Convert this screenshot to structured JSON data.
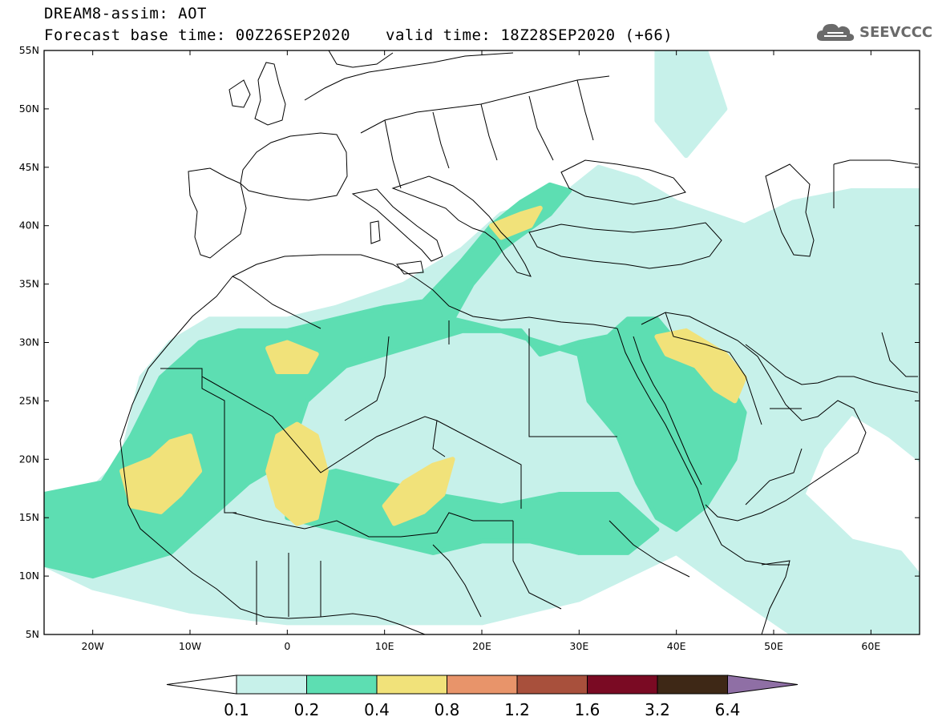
{
  "header": {
    "line1": "DREAM8-assim: AOT",
    "base_time": "Forecast base time: 00Z26SEP2020",
    "valid_time": "valid time: 18Z28SEP2020 (+66)"
  },
  "logo": {
    "text": "SEEVCCC",
    "icon": "cloud-icon"
  },
  "map": {
    "lon_range": [
      -25,
      65
    ],
    "lat_range": [
      5,
      55
    ],
    "lat_ticks": [
      {
        "lat": 55,
        "label": "55N"
      },
      {
        "lat": 50,
        "label": "50N"
      },
      {
        "lat": 45,
        "label": "45N"
      },
      {
        "lat": 40,
        "label": "40N"
      },
      {
        "lat": 35,
        "label": "35N"
      },
      {
        "lat": 30,
        "label": "30N"
      },
      {
        "lat": 25,
        "label": "25N"
      },
      {
        "lat": 20,
        "label": "20N"
      },
      {
        "lat": 15,
        "label": "15N"
      },
      {
        "lat": 10,
        "label": "10N"
      },
      {
        "lat": 5,
        "label": "5N"
      }
    ],
    "lon_ticks": [
      {
        "lon": -20,
        "label": "20W"
      },
      {
        "lon": -10,
        "label": "10W"
      },
      {
        "lon": 0,
        "label": "0"
      },
      {
        "lon": 10,
        "label": "10E"
      },
      {
        "lon": 20,
        "label": "20E"
      },
      {
        "lon": 30,
        "label": "30E"
      },
      {
        "lon": 40,
        "label": "40E"
      },
      {
        "lon": 50,
        "label": "50E"
      },
      {
        "lon": 60,
        "label": "60E"
      }
    ],
    "aot_zones": [
      {
        "level": "0.1-0.2",
        "color": "#c7f1ea",
        "pts": [
          [
            -25,
            17
          ],
          [
            -20,
            17.5
          ],
          [
            -17,
            20
          ],
          [
            -15,
            27
          ],
          [
            -12,
            30
          ],
          [
            -8,
            32
          ],
          [
            0,
            32
          ],
          [
            5,
            33
          ],
          [
            12,
            35
          ],
          [
            18,
            38
          ],
          [
            22,
            41
          ],
          [
            26,
            42
          ],
          [
            29,
            43
          ],
          [
            32,
            45
          ],
          [
            36,
            44
          ],
          [
            40,
            42
          ],
          [
            47,
            40
          ],
          [
            52,
            42
          ],
          [
            58,
            43
          ],
          [
            65,
            43
          ],
          [
            65,
            20
          ],
          [
            62,
            22
          ],
          [
            58,
            24
          ],
          [
            55,
            21
          ],
          [
            53,
            17
          ],
          [
            58,
            13
          ],
          [
            63,
            12
          ],
          [
            65,
            10
          ],
          [
            65,
            5
          ],
          [
            52,
            5
          ],
          [
            45,
            9
          ],
          [
            40,
            12
          ],
          [
            35,
            10
          ],
          [
            30,
            8
          ],
          [
            20,
            6
          ],
          [
            10,
            6
          ],
          [
            0,
            6
          ],
          [
            -10,
            7
          ],
          [
            -20,
            9
          ],
          [
            -25,
            11
          ]
        ]
      },
      {
        "level": "0.1-0.2",
        "color": "#c7f1ea",
        "pts": [
          [
            38,
            55
          ],
          [
            43,
            55
          ],
          [
            45,
            50
          ],
          [
            41,
            46
          ],
          [
            38,
            49
          ]
        ]
      },
      {
        "level": "0.2-0.4",
        "color": "#5ddeb2",
        "pts": [
          [
            -25,
            17
          ],
          [
            -19,
            18
          ],
          [
            -16,
            22
          ],
          [
            -13,
            27
          ],
          [
            -9,
            30
          ],
          [
            -5,
            31
          ],
          [
            0,
            31
          ],
          [
            5,
            32
          ],
          [
            10,
            33
          ],
          [
            14,
            33.5
          ],
          [
            18,
            37
          ],
          [
            21,
            40
          ],
          [
            24,
            42
          ],
          [
            27,
            43.5
          ],
          [
            29,
            43
          ],
          [
            27,
            41
          ],
          [
            22,
            38
          ],
          [
            19,
            35
          ],
          [
            17,
            32
          ],
          [
            22,
            31
          ],
          [
            26,
            30
          ],
          [
            30,
            29
          ],
          [
            31,
            25
          ],
          [
            34,
            22
          ],
          [
            36,
            18
          ],
          [
            38,
            15
          ],
          [
            40,
            14
          ],
          [
            43,
            16
          ],
          [
            46,
            20
          ],
          [
            47,
            24
          ],
          [
            45,
            27
          ],
          [
            41,
            29
          ],
          [
            38,
            32
          ],
          [
            35,
            32
          ],
          [
            33,
            30.5
          ],
          [
            30,
            30
          ],
          [
            26,
            29
          ],
          [
            24,
            31
          ],
          [
            18,
            31
          ],
          [
            12,
            29.5
          ],
          [
            6,
            28
          ],
          [
            2,
            25
          ],
          [
            0,
            20
          ],
          [
            -4,
            18
          ],
          [
            -8,
            15
          ],
          [
            -12,
            12
          ],
          [
            -16,
            11
          ],
          [
            -20,
            10
          ],
          [
            -25,
            11
          ]
        ]
      },
      {
        "level": "0.2-0.4",
        "color": "#5ddeb2",
        "pts": [
          [
            0,
            15
          ],
          [
            5,
            14
          ],
          [
            10,
            13
          ],
          [
            15,
            12
          ],
          [
            20,
            13
          ],
          [
            25,
            13
          ],
          [
            30,
            12
          ],
          [
            35,
            12
          ],
          [
            38,
            14
          ],
          [
            34,
            17
          ],
          [
            28,
            17
          ],
          [
            22,
            16
          ],
          [
            15,
            17
          ],
          [
            10,
            18
          ],
          [
            5,
            19
          ],
          [
            0,
            18
          ]
        ]
      },
      {
        "level": "0.4-0.8",
        "color": "#f1e27a",
        "pts": [
          [
            -17,
            19
          ],
          [
            -14,
            20
          ],
          [
            -12,
            21.5
          ],
          [
            -10,
            22
          ],
          [
            -9,
            19
          ],
          [
            -11,
            17
          ],
          [
            -13,
            15.5
          ],
          [
            -16,
            16
          ]
        ]
      },
      {
        "level": "0.4-0.8",
        "color": "#f1e27a",
        "pts": [
          [
            -1,
            22
          ],
          [
            1,
            23
          ],
          [
            3,
            22
          ],
          [
            4,
            19
          ],
          [
            3,
            15
          ],
          [
            1,
            14.5
          ],
          [
            -1,
            16
          ],
          [
            -2,
            19
          ]
        ]
      },
      {
        "level": "0.4-0.8",
        "color": "#f1e27a",
        "pts": [
          [
            10,
            16
          ],
          [
            12,
            18
          ],
          [
            15,
            19.5
          ],
          [
            17,
            20
          ],
          [
            16,
            17
          ],
          [
            14,
            15.5
          ],
          [
            11,
            14.5
          ]
        ]
      },
      {
        "level": "0.4-0.8",
        "color": "#f1e27a",
        "pts": [
          [
            -2,
            29.5
          ],
          [
            0,
            30
          ],
          [
            3,
            29
          ],
          [
            2,
            27.5
          ],
          [
            -1,
            27.5
          ]
        ]
      },
      {
        "level": "0.4-0.8",
        "color": "#f1e27a",
        "pts": [
          [
            38,
            30.5
          ],
          [
            41,
            31
          ],
          [
            45,
            29
          ],
          [
            47,
            27
          ],
          [
            46,
            25
          ],
          [
            44,
            26
          ],
          [
            42,
            28
          ],
          [
            39,
            29
          ]
        ]
      },
      {
        "level": "0.4-0.8",
        "color": "#f1e27a",
        "pts": [
          [
            21,
            40
          ],
          [
            24,
            41
          ],
          [
            26,
            41.5
          ],
          [
            25,
            40
          ],
          [
            22,
            39
          ]
        ]
      }
    ],
    "coastline_notes": "outline approximate"
  },
  "colorbar": {
    "levels": [
      "0.1",
      "0.2",
      "0.4",
      "0.8",
      "1.2",
      "1.6",
      "3.2",
      "6.4"
    ],
    "colors": [
      "#ffffff",
      "#c7f1ea",
      "#5ddeb2",
      "#f1e27a",
      "#e8946a",
      "#a8503c",
      "#7a0a23",
      "#3e2816",
      "#8f6fa5"
    ]
  }
}
